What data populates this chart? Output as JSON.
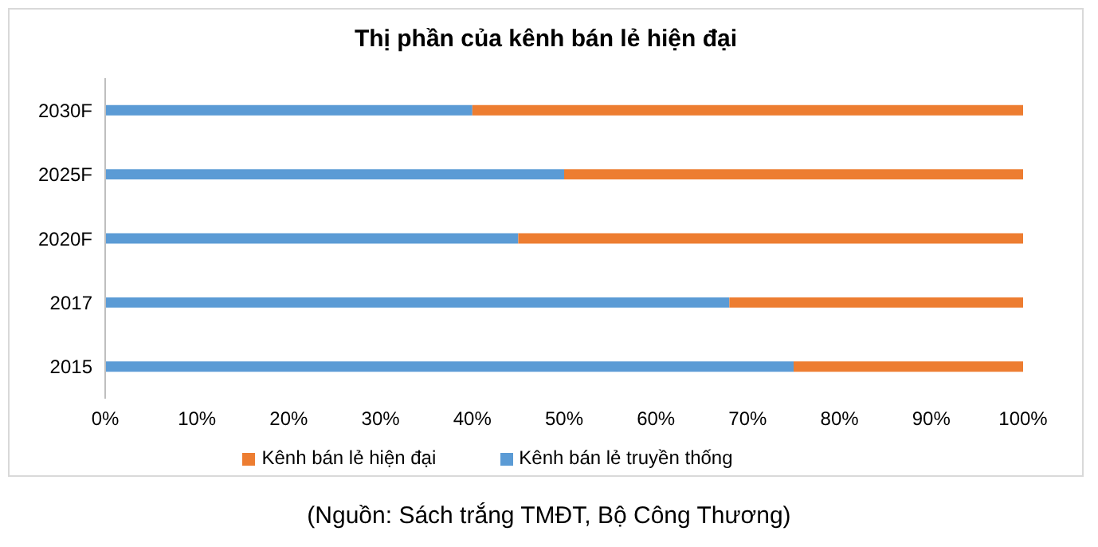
{
  "chart_data": {
    "type": "bar",
    "orientation": "horizontal",
    "stacked": true,
    "title": "Thị phần của kênh bán lẻ hiện đại",
    "categories": [
      "2030F",
      "2025F",
      "2020F",
      "2017",
      "2015"
    ],
    "series": [
      {
        "name": "Kênh bán lẻ truyền thống",
        "color": "#5b9bd5",
        "values": [
          40,
          50,
          45,
          68,
          75
        ]
      },
      {
        "name": "Kênh bán lẻ hiện đại",
        "color": "#ed7d31",
        "values": [
          60,
          50,
          55,
          32,
          25
        ]
      }
    ],
    "xlim": [
      0,
      100
    ],
    "xticks": [
      {
        "value": 0,
        "label": "0%"
      },
      {
        "value": 10,
        "label": "10%"
      },
      {
        "value": 20,
        "label": "20%"
      },
      {
        "value": 30,
        "label": "30%"
      },
      {
        "value": 40,
        "label": "40%"
      },
      {
        "value": 50,
        "label": "50%"
      },
      {
        "value": 60,
        "label": "60%"
      },
      {
        "value": 70,
        "label": "70%"
      },
      {
        "value": 80,
        "label": "80%"
      },
      {
        "value": 90,
        "label": "90%"
      },
      {
        "value": 100,
        "label": "100%"
      }
    ],
    "grid": false,
    "legend": "bottom",
    "annotations": [
      "(Nguồn: Sách trắng TMĐT, Bộ Công Thương)"
    ]
  }
}
